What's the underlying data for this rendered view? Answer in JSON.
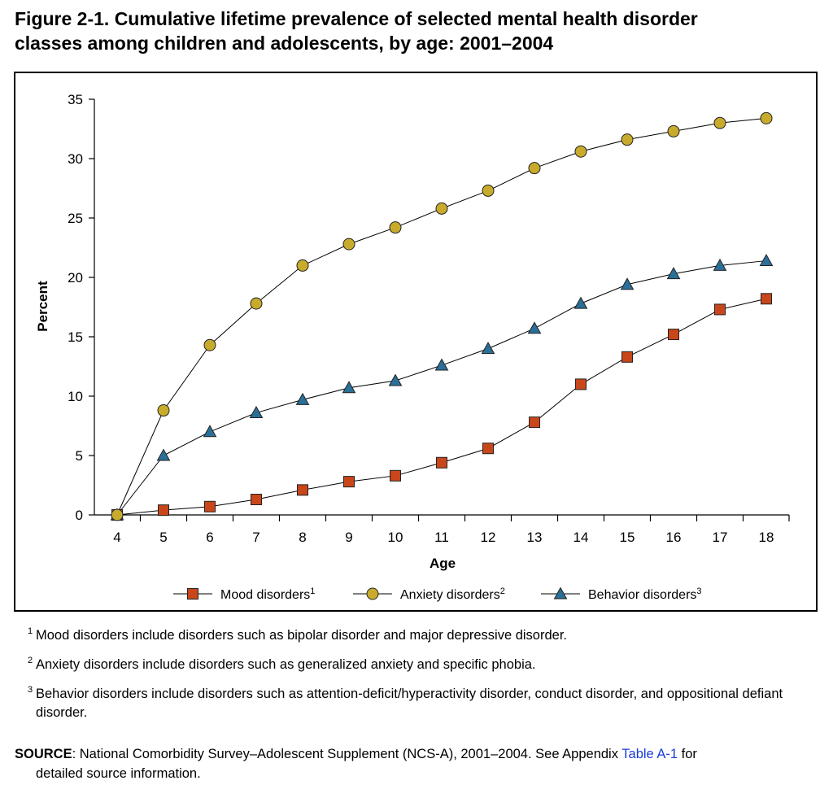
{
  "title_line1": "Figure 2-1. Cumulative lifetime prevalence of selected mental health disorder",
  "title_line2": "classes among children and adolescents, by age: 2001–2004",
  "colors": {
    "mood": "#c8461a",
    "anxiety": "#c9ab2c",
    "behavior": "#2a6f97"
  },
  "chart_data": {
    "type": "line",
    "xlabel": "Age",
    "ylabel": "Percent",
    "ylim": [
      0,
      35
    ],
    "yticks": [
      0,
      5,
      10,
      15,
      20,
      25,
      30,
      35
    ],
    "x": [
      4,
      5,
      6,
      7,
      8,
      9,
      10,
      11,
      12,
      13,
      14,
      15,
      16,
      17,
      18
    ],
    "legend_position": "bottom",
    "grid": false,
    "series": [
      {
        "name": "Mood disorders",
        "footnote": "1",
        "marker": "square",
        "values": [
          0,
          0.4,
          0.7,
          1.3,
          2.1,
          2.8,
          3.3,
          4.4,
          5.6,
          7.8,
          11.0,
          13.3,
          15.2,
          17.3,
          18.2
        ]
      },
      {
        "name": "Anxiety disorders",
        "footnote": "2",
        "marker": "circle",
        "values": [
          0,
          8.8,
          14.3,
          17.8,
          21.0,
          22.8,
          24.2,
          25.8,
          27.3,
          29.2,
          30.6,
          31.6,
          32.3,
          33.0,
          33.4
        ]
      },
      {
        "name": "Behavior disorders",
        "footnote": "3",
        "marker": "triangle",
        "values": [
          0,
          5.0,
          7.0,
          8.6,
          9.7,
          10.7,
          11.3,
          12.6,
          14.0,
          15.7,
          17.8,
          19.4,
          20.3,
          21.0,
          21.4
        ]
      }
    ]
  },
  "footnotes": [
    {
      "num": "1",
      "text": "Mood disorders include disorders such as bipolar disorder and major depressive disorder."
    },
    {
      "num": "2",
      "text": "Anxiety disorders include disorders such as generalized anxiety and specific phobia."
    },
    {
      "num": "3",
      "text": "Behavior disorders include disorders such as attention-deficit/hyperactivity disorder, conduct disorder, and oppositional defiant disorder."
    }
  ],
  "source": {
    "label": "SOURCE",
    "text": ": National Comorbidity Survey–Adolescent Supplement (NCS-A), 2001–2004. See Appendix ",
    "link_text": "Table A-1",
    "text_after": " for",
    "text_line2": "detailed source information."
  }
}
